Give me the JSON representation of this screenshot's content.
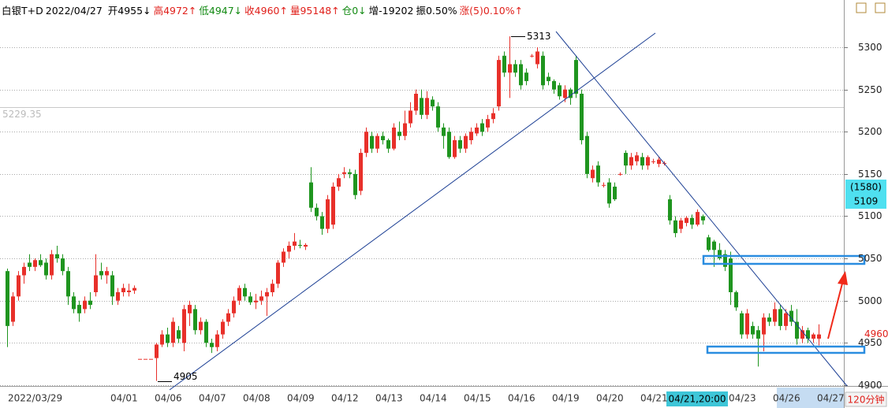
{
  "chart_data": {
    "type": "candlestick",
    "title": "白银T+D",
    "date": "2022/04/27",
    "stats": [
      {
        "text": "开4955↓",
        "color": "#000000"
      },
      {
        "text": "高4972↑",
        "color": "#e0201b"
      },
      {
        "text": "低4947↓",
        "color": "#138a13"
      },
      {
        "text": "收4960↑",
        "color": "#e0201b"
      },
      {
        "text": "量95148↑",
        "color": "#e0201b"
      },
      {
        "text": "仓0↓",
        "color": "#138a13"
      },
      {
        "text": "增-19202",
        "color": "#000000"
      },
      {
        "text": "振0.50%",
        "color": "#000000"
      },
      {
        "text": "涨(5)0.10%↑",
        "color": "#e0201b"
      }
    ],
    "period": "120分钟",
    "up_color": "#e8302a",
    "down_color": "#1f951f",
    "grid": true,
    "ylim": [
      4899,
      5356
    ],
    "yticks": [
      4900,
      4950,
      5000,
      5050,
      5100,
      5150,
      5200,
      5250,
      5300
    ],
    "max_label": 5313,
    "min_label": 4905,
    "last_price": 4960,
    "cursor": {
      "price": 5229.35,
      "time": "04/21,20:00",
      "count": "(1580)",
      "value": 5109
    },
    "categories": [
      "2022/03/29",
      null,
      null,
      null,
      null,
      null,
      null,
      null,
      null,
      null,
      null,
      null,
      null,
      null,
      null,
      null,
      null,
      null,
      null,
      "04/01",
      null,
      null,
      null,
      null,
      null,
      null,
      null,
      "04/06",
      null,
      null,
      null,
      null,
      null,
      null,
      null,
      "04/07",
      null,
      null,
      null,
      null,
      null,
      null,
      null,
      "04/08",
      null,
      null,
      null,
      null,
      null,
      null,
      null,
      "04/09",
      null,
      null,
      null,
      null,
      null,
      null,
      null,
      "04/12",
      null,
      null,
      null,
      null,
      null,
      null,
      null,
      "04/13",
      null,
      null,
      null,
      null,
      null,
      null,
      null,
      "04/14",
      null,
      null,
      null,
      null,
      null,
      null,
      null,
      "04/15",
      null,
      null,
      null,
      null,
      null,
      null,
      null,
      "04/16",
      null,
      null,
      null,
      null,
      null,
      null,
      null,
      "04/19",
      null,
      null,
      null,
      null,
      null,
      null,
      null,
      "04/20",
      null,
      null,
      null,
      null,
      null,
      null,
      null,
      "04/21",
      null,
      null,
      null,
      null,
      null,
      null,
      null,
      null,
      null,
      null,
      null,
      null,
      null,
      null,
      null,
      "04/23",
      null,
      null,
      null,
      null,
      null,
      null,
      null,
      "04/26",
      null,
      null,
      null,
      null,
      null,
      null,
      null,
      "04/27"
    ],
    "ohlc": [
      [
        5035,
        5038,
        4945,
        4970
      ],
      [
        4975,
        5010,
        4970,
        5005
      ],
      [
        5005,
        5035,
        5000,
        5030
      ],
      [
        5030,
        5045,
        5020,
        5040
      ],
      [
        5045,
        5055,
        5035,
        5040
      ],
      [
        5040,
        5050,
        5035,
        5048
      ],
      [
        5048,
        5055,
        5040,
        5042
      ],
      [
        5045,
        5050,
        5025,
        5030
      ],
      [
        5030,
        5060,
        5025,
        5055
      ],
      [
        5055,
        5065,
        5045,
        5050
      ],
      [
        5050,
        5055,
        5030,
        5035
      ],
      [
        5035,
        5040,
        4995,
        5005
      ],
      [
        5005,
        5010,
        4985,
        4990
      ],
      [
        4995,
        5000,
        4975,
        4985
      ],
      [
        4990,
        5005,
        4985,
        5000
      ],
      [
        5000,
        5010,
        4990,
        4995
      ],
      [
        5010,
        5055,
        5005,
        5030
      ],
      [
        5035,
        5045,
        5025,
        5030
      ],
      [
        5030,
        5040,
        5020,
        5035
      ],
      [
        5030,
        5035,
        4995,
        5005
      ],
      [
        5000,
        5015,
        4995,
        5010
      ],
      [
        5010,
        5020,
        5005,
        5015
      ],
      [
        5010,
        5020,
        5005,
        5012
      ],
      [
        5012,
        5018,
        5008,
        5015
      ],
      [
        4931,
        4931,
        4931,
        4931
      ],
      [
        4931,
        4931,
        4931,
        4931
      ],
      [
        4931,
        4931,
        4931,
        4931
      ],
      [
        4932,
        4950,
        4905,
        4948
      ],
      [
        4948,
        4965,
        4945,
        4960
      ],
      [
        4960,
        4968,
        4945,
        4950
      ],
      [
        4950,
        4980,
        4945,
        4975
      ],
      [
        4965,
        4970,
        4950,
        4955
      ],
      [
        4950,
        4995,
        4940,
        4990
      ],
      [
        4985,
        5000,
        4970,
        4995
      ],
      [
        4990,
        4995,
        4960,
        4965
      ],
      [
        4965,
        4980,
        4960,
        4975
      ],
      [
        4975,
        4978,
        4945,
        4950
      ],
      [
        4950,
        4955,
        4938,
        4945
      ],
      [
        4945,
        4965,
        4940,
        4960
      ],
      [
        4960,
        4978,
        4955,
        4975
      ],
      [
        4975,
        4990,
        4970,
        4985
      ],
      [
        4985,
        5005,
        4980,
        5000
      ],
      [
        5000,
        5018,
        4995,
        5015
      ],
      [
        5015,
        5020,
        5000,
        5005
      ],
      [
        5005,
        5010,
        4995,
        4998
      ],
      [
        4998,
        5008,
        4990,
        5000
      ],
      [
        5000,
        5012,
        4995,
        5005
      ],
      [
        5005,
        5015,
        4982,
        5010
      ],
      [
        5010,
        5025,
        5005,
        5020
      ],
      [
        5020,
        5048,
        5015,
        5045
      ],
      [
        5045,
        5062,
        5040,
        5058
      ],
      [
        5058,
        5070,
        5050,
        5065
      ],
      [
        5065,
        5080,
        5060,
        5070
      ],
      [
        5066,
        5072,
        5062,
        5065
      ],
      [
        5064,
        5068,
        5060,
        5066
      ],
      [
        5140,
        5158,
        5105,
        5110
      ],
      [
        5110,
        5115,
        5095,
        5100
      ],
      [
        5100,
        5105,
        5078,
        5085
      ],
      [
        5085,
        5125,
        5080,
        5120
      ],
      [
        5090,
        5140,
        5085,
        5135
      ],
      [
        5135,
        5150,
        5130,
        5145
      ],
      [
        5150,
        5158,
        5145,
        5152
      ],
      [
        5152,
        5156,
        5145,
        5150
      ],
      [
        5150,
        5155,
        5120,
        5125
      ],
      [
        5130,
        5180,
        5125,
        5175
      ],
      [
        5175,
        5205,
        5170,
        5200
      ],
      [
        5195,
        5200,
        5175,
        5180
      ],
      [
        5180,
        5198,
        5175,
        5195
      ],
      [
        5195,
        5200,
        5185,
        5190
      ],
      [
        5190,
        5192,
        5175,
        5180
      ],
      [
        5180,
        5210,
        5178,
        5205
      ],
      [
        5200,
        5212,
        5190,
        5195
      ],
      [
        5195,
        5225,
        5190,
        5210
      ],
      [
        5210,
        5235,
        5205,
        5225
      ],
      [
        5225,
        5250,
        5220,
        5245
      ],
      [
        5240,
        5250,
        5215,
        5220
      ],
      [
        5220,
        5248,
        5215,
        5240
      ],
      [
        5238,
        5242,
        5225,
        5230
      ],
      [
        5230,
        5235,
        5200,
        5205
      ],
      [
        5205,
        5210,
        5180,
        5195
      ],
      [
        5200,
        5205,
        5168,
        5170
      ],
      [
        5170,
        5195,
        5168,
        5190
      ],
      [
        5190,
        5195,
        5175,
        5180
      ],
      [
        5180,
        5198,
        5175,
        5195
      ],
      [
        5190,
        5205,
        5185,
        5200
      ],
      [
        5198,
        5210,
        5195,
        5205
      ],
      [
        5210,
        5215,
        5195,
        5200
      ],
      [
        5205,
        5220,
        5200,
        5215
      ],
      [
        5215,
        5228,
        5210,
        5222
      ],
      [
        5230,
        5290,
        5225,
        5285
      ],
      [
        5290,
        5295,
        5265,
        5270
      ],
      [
        5270,
        5313,
        5240,
        5280
      ],
      [
        5280,
        5285,
        5265,
        5270
      ],
      [
        5280,
        5285,
        5250,
        5255
      ],
      [
        5270,
        5275,
        5255,
        5260
      ],
      [
        5290,
        5292,
        5288,
        5290
      ],
      [
        5280,
        5300,
        5275,
        5295
      ],
      [
        5290,
        5295,
        5250,
        5255
      ],
      [
        5265,
        5270,
        5255,
        5260
      ],
      [
        5260,
        5262,
        5245,
        5250
      ],
      [
        5255,
        5258,
        5238,
        5242
      ],
      [
        5240,
        5255,
        5235,
        5250
      ],
      [
        5250,
        5252,
        5232,
        5240
      ],
      [
        5285,
        5290,
        5240,
        5245
      ],
      [
        5245,
        5250,
        5185,
        5190
      ],
      [
        5195,
        5200,
        5145,
        5150
      ],
      [
        5145,
        5160,
        5140,
        5155
      ],
      [
        5160,
        5165,
        5135,
        5140
      ],
      [
        5137,
        5140,
        5134,
        5137
      ],
      [
        5140,
        5145,
        5110,
        5115
      ],
      [
        5135,
        5140,
        5118,
        5120
      ],
      [
        5150,
        5152,
        5148,
        5150
      ],
      [
        5175,
        5178,
        5150,
        5160
      ],
      [
        5160,
        5175,
        5155,
        5170
      ],
      [
        5165,
        5176,
        5160,
        5172
      ],
      [
        5170,
        5175,
        5155,
        5160
      ],
      [
        5160,
        5172,
        5155,
        5170
      ],
      [
        5165,
        5168,
        5162,
        5165
      ],
      [
        5162,
        5170,
        5158,
        5167
      ],
      [
        5163,
        5165,
        5160,
        5163
      ],
      [
        5120,
        5125,
        5090,
        5095
      ],
      [
        5095,
        5100,
        5075,
        5080
      ],
      [
        5085,
        5098,
        5080,
        5095
      ],
      [
        5092,
        5100,
        5088,
        5098
      ],
      [
        5098,
        5102,
        5085,
        5090
      ],
      [
        5090,
        5108,
        5088,
        5105
      ],
      [
        5100,
        5102,
        5090,
        5095
      ],
      [
        5075,
        5078,
        5058,
        5060
      ],
      [
        5070,
        5072,
        5040,
        5060
      ],
      [
        5060,
        5068,
        5048,
        5050
      ],
      [
        5055,
        5060,
        5035,
        5040
      ],
      [
        5050,
        5058,
        4995,
        5010
      ],
      [
        5010,
        5012,
        4988,
        4992
      ],
      [
        4985,
        4988,
        4955,
        4960
      ],
      [
        4960,
        4990,
        4955,
        4985
      ],
      [
        4970,
        4975,
        4955,
        4960
      ],
      [
        4965,
        4970,
        4922,
        4955
      ],
      [
        4960,
        4985,
        4940,
        4980
      ],
      [
        4980,
        4985,
        4970,
        4975
      ],
      [
        4975,
        4998,
        4970,
        4990
      ],
      [
        4990,
        4995,
        4965,
        4970
      ],
      [
        4970,
        4990,
        4965,
        4985
      ],
      [
        4988,
        4995,
        4970,
        4975
      ],
      [
        4975,
        4990,
        4948,
        4955
      ],
      [
        4955,
        4970,
        4950,
        4965
      ],
      [
        4965,
        4968,
        4950,
        4955
      ],
      [
        4955,
        4962,
        4950,
        4960
      ],
      [
        4955,
        4972,
        4947,
        4960
      ]
    ]
  }
}
